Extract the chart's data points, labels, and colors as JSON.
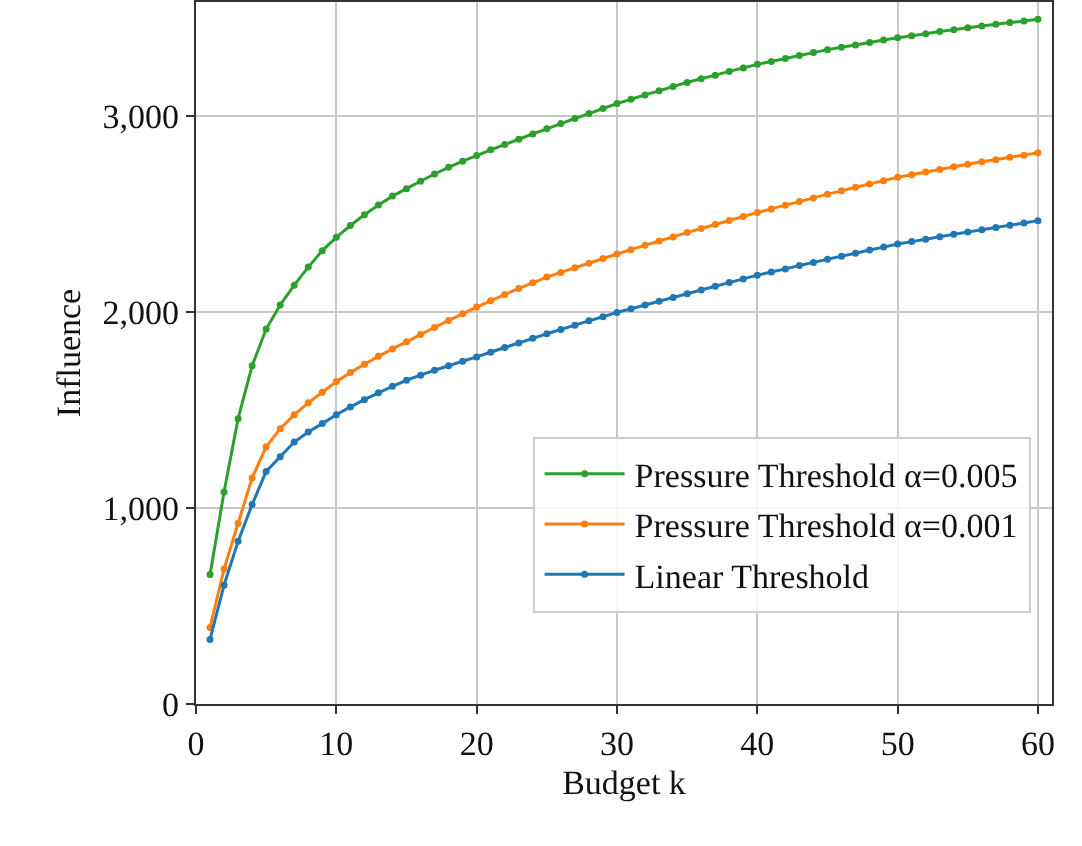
{
  "chart_data": {
    "type": "line",
    "xlabel": "Budget k",
    "ylabel": "Influence",
    "x": [
      1,
      2,
      3,
      4,
      5,
      6,
      7,
      8,
      9,
      10,
      11,
      12,
      13,
      14,
      15,
      16,
      17,
      18,
      19,
      20,
      21,
      22,
      23,
      24,
      25,
      26,
      27,
      28,
      29,
      30,
      31,
      32,
      33,
      34,
      35,
      36,
      37,
      38,
      39,
      40,
      41,
      42,
      43,
      44,
      45,
      46,
      47,
      48,
      49,
      50,
      51,
      52,
      53,
      54,
      55,
      56,
      57,
      58,
      59,
      60
    ],
    "series": [
      {
        "name": "Pressure Threshold α=0.005",
        "color": "#2ca02c",
        "values": [
          661,
          1081,
          1455,
          1725,
          1912,
          2035,
          2136,
          2228,
          2312,
          2380,
          2440,
          2495,
          2545,
          2590,
          2628,
          2666,
          2703,
          2737,
          2768,
          2797,
          2826,
          2853,
          2880,
          2907,
          2933,
          2960,
          2986,
          3011,
          3037,
          3062,
          3084,
          3106,
          3127,
          3149,
          3170,
          3189,
          3207,
          3226,
          3244,
          3262,
          3277,
          3292,
          3307,
          3322,
          3337,
          3349,
          3361,
          3374,
          3386,
          3398,
          3408,
          3418,
          3429,
          3439,
          3449,
          3458,
          3466,
          3475,
          3483,
          3492
        ]
      },
      {
        "name": "Pressure Threshold α=0.001",
        "color": "#ff7f0e",
        "values": [
          390,
          688,
          922,
          1153,
          1312,
          1404,
          1475,
          1536,
          1590,
          1644,
          1690,
          1733,
          1773,
          1811,
          1847,
          1884,
          1920,
          1956,
          1990,
          2024,
          2056,
          2088,
          2119,
          2148,
          2177,
          2201,
          2225,
          2248,
          2272,
          2295,
          2317,
          2339,
          2361,
          2382,
          2404,
          2425,
          2445,
          2466,
          2486,
          2506,
          2525,
          2544,
          2562,
          2581,
          2600,
          2617,
          2635,
          2652,
          2669,
          2686,
          2699,
          2713,
          2726,
          2740,
          2753,
          2765,
          2776,
          2788,
          2799,
          2811
        ]
      },
      {
        "name": "Linear Threshold",
        "color": "#1f77b4",
        "values": [
          329,
          606,
          830,
          1017,
          1186,
          1261,
          1336,
          1387,
          1430,
          1475,
          1515,
          1552,
          1587,
          1620,
          1651,
          1677,
          1702,
          1725,
          1748,
          1770,
          1794,
          1818,
          1841,
          1865,
          1888,
          1910,
          1932,
          1954,
          1975,
          1997,
          2016,
          2035,
          2054,
          2073,
          2092,
          2111,
          2130,
          2149,
          2168,
          2187,
          2203,
          2219,
          2236,
          2252,
          2268,
          2284,
          2299,
          2315,
          2330,
          2346,
          2358,
          2370,
          2383,
          2395,
          2407,
          2419,
          2430,
          2442,
          2453,
          2465
        ]
      }
    ],
    "xlim": [
      0,
      61
    ],
    "xticks": [
      0,
      10,
      20,
      30,
      40,
      50,
      60
    ],
    "ylim": [
      0,
      3580
    ],
    "yticks": [
      0,
      {
        "value": 1000,
        "label": "1,000"
      },
      {
        "value": 2000,
        "label": "2,000"
      },
      {
        "value": 3000,
        "label": "3,000"
      }
    ],
    "grid": true,
    "legend": "bottom right",
    "marker": "circle",
    "line_style": "solid"
  }
}
